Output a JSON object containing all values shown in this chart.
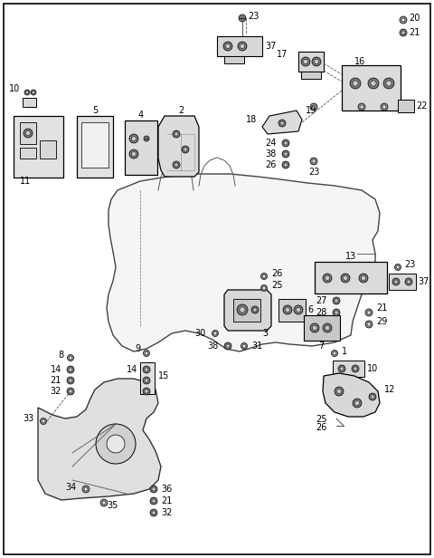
{
  "fig_width": 4.8,
  "fig_height": 6.16,
  "dpi": 100,
  "bg": "#ffffff",
  "lc": "#333333",
  "parts_color": "#e8e8e8",
  "engine_color": "#f2f2f2"
}
